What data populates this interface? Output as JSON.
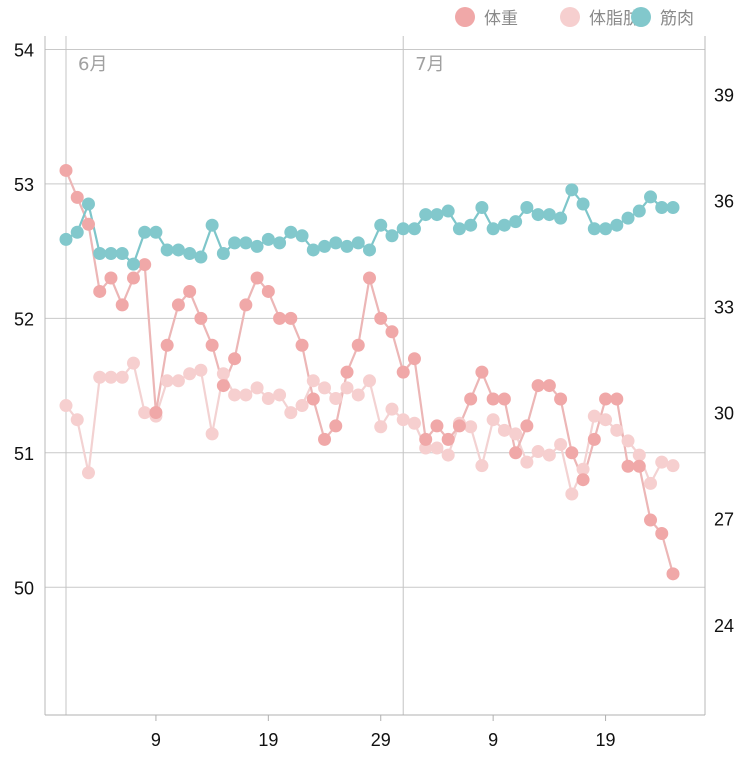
{
  "chart_data": {
    "type": "line",
    "legend": {
      "placement": "top-right"
    },
    "grid": true,
    "month_labels": [
      {
        "label": "6月",
        "day": 1
      },
      {
        "label": "7月",
        "day": 31
      }
    ],
    "x_ticks": [
      {
        "label": "9",
        "day": 9
      },
      {
        "label": "19",
        "day": 19
      },
      {
        "label": "29",
        "day": 29
      },
      {
        "label": "9",
        "day": 39
      },
      {
        "label": "19",
        "day": 49
      }
    ],
    "x_range": [
      1,
      55
    ],
    "y_left": {
      "ticks": [
        50,
        51,
        52,
        53,
        54
      ],
      "range": [
        49.05,
        54.1
      ]
    },
    "y_right": {
      "ticks": [
        24,
        27,
        30,
        33,
        36,
        39
      ],
      "range": [
        21.45,
        40.65
      ]
    },
    "series": [
      {
        "name": "体重",
        "axis": "left",
        "color": "#f0a8a8",
        "line_color": "#ecb6b6",
        "values": [
          53.1,
          52.9,
          52.7,
          52.2,
          52.3,
          52.1,
          52.3,
          52.4,
          51.3,
          51.8,
          52.1,
          52.2,
          52.0,
          51.8,
          51.5,
          51.7,
          52.1,
          52.3,
          52.2,
          52.0,
          52.0,
          51.8,
          51.4,
          51.1,
          51.2,
          51.6,
          51.8,
          52.3,
          52.0,
          51.9,
          51.6,
          51.7,
          51.1,
          51.2,
          51.1,
          51.2,
          51.4,
          51.6,
          51.4,
          51.4,
          51.0,
          51.2,
          51.5,
          51.5,
          51.4,
          51.0,
          50.8,
          51.1,
          51.4,
          51.4,
          50.9,
          50.9,
          50.5,
          50.4,
          50.1
        ]
      },
      {
        "name": "体脂肪",
        "axis": "right",
        "color": "#f6cfcf",
        "line_color": "#f3d2d2",
        "values": [
          30.2,
          29.8,
          28.3,
          31.0,
          31.0,
          31.0,
          31.4,
          30.0,
          29.9,
          30.9,
          30.9,
          31.1,
          31.2,
          29.4,
          31.1,
          30.5,
          30.5,
          30.7,
          30.4,
          30.5,
          30.0,
          30.2,
          30.9,
          30.7,
          30.4,
          30.7,
          30.5,
          30.9,
          29.6,
          30.1,
          29.8,
          29.7,
          29.0,
          29.0,
          28.8,
          29.7,
          29.6,
          28.5,
          29.8,
          29.5,
          29.4,
          28.6,
          28.9,
          28.8,
          29.1,
          27.7,
          28.4,
          29.9,
          29.8,
          29.5,
          29.2,
          28.8,
          28.0,
          28.6,
          28.5
        ]
      },
      {
        "name": "筋肉",
        "axis": "right",
        "color": "#82c8cc",
        "line_color": "#7ec6ca",
        "values": [
          34.9,
          35.1,
          35.9,
          34.5,
          34.5,
          34.5,
          34.2,
          35.1,
          35.1,
          34.6,
          34.6,
          34.5,
          34.4,
          35.3,
          34.5,
          34.8,
          34.8,
          34.7,
          34.9,
          34.8,
          35.1,
          35.0,
          34.6,
          34.7,
          34.8,
          34.7,
          34.8,
          34.6,
          35.3,
          35.0,
          35.2,
          35.2,
          35.6,
          35.6,
          35.7,
          35.2,
          35.3,
          35.8,
          35.2,
          35.3,
          35.4,
          35.8,
          35.6,
          35.6,
          35.5,
          36.3,
          35.9,
          35.2,
          35.2,
          35.3,
          35.5,
          35.7,
          36.1,
          35.8,
          35.8
        ]
      }
    ]
  }
}
